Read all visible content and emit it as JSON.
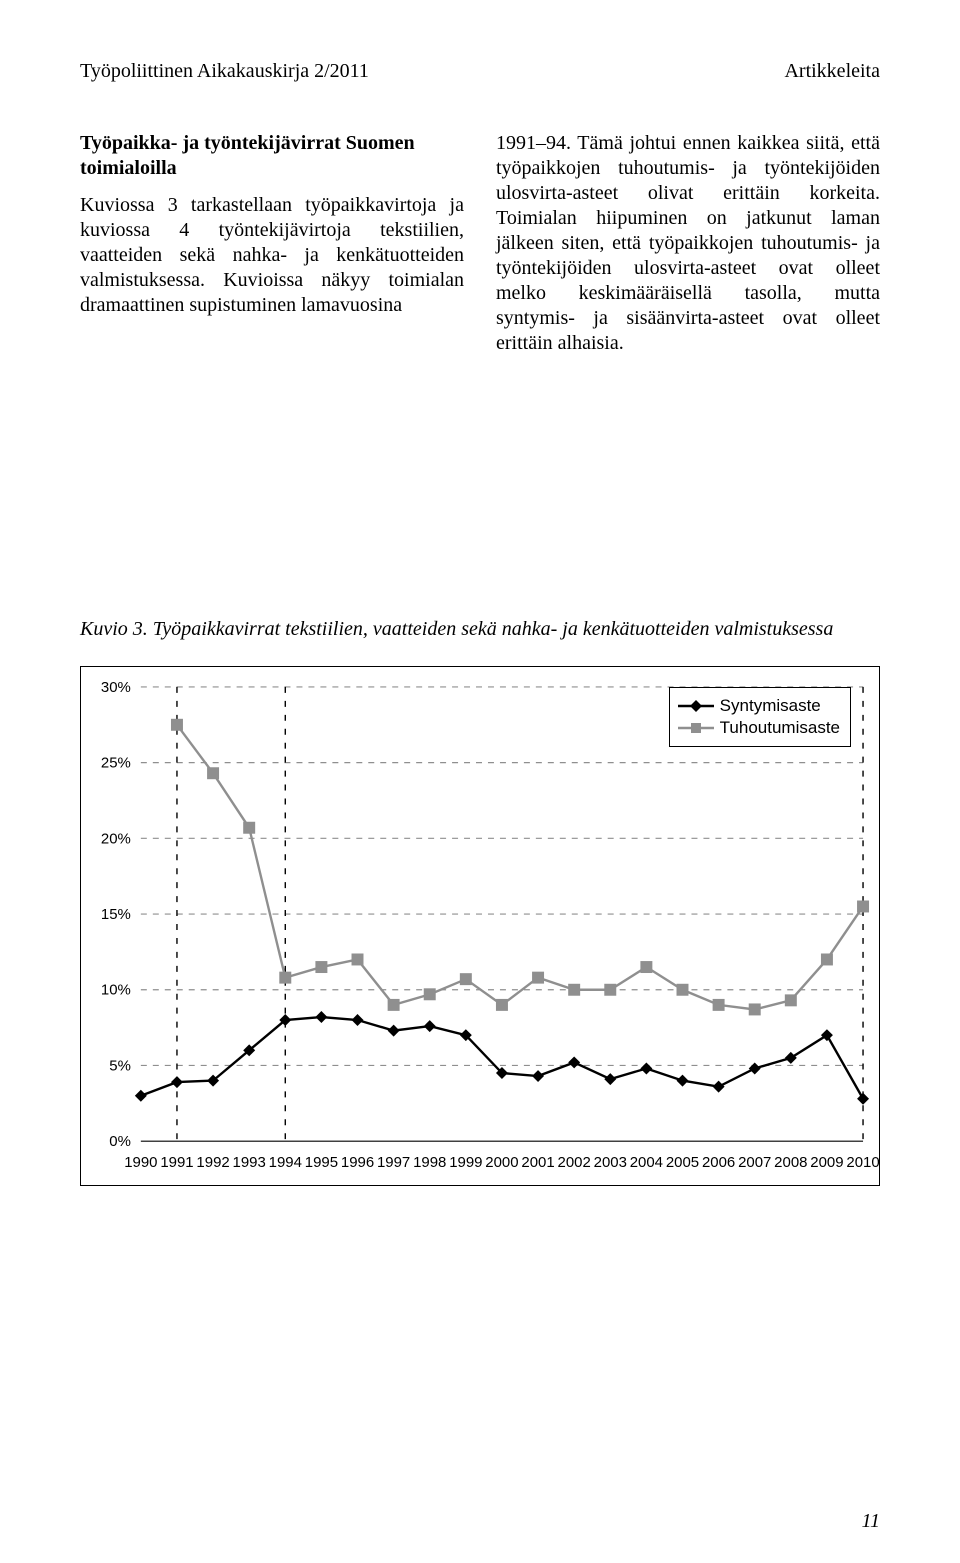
{
  "running_head": {
    "left": "Työpoliittinen Aikakauskirja 2/2011",
    "right": "Artikkeleita"
  },
  "left_col": {
    "heading": "Työpaikka- ja työntekijävirrat Suomen toimialoilla",
    "body": "Kuviossa 3 tarkastellaan työpaikkavirtoja ja kuviossa 4 työntekijävirtoja tekstiilien, vaatteiden sekä nahka- ja kenkätuotteiden valmistuksessa. Kuvioissa näkyy toimialan dramaattinen supistuminen lamavuosina"
  },
  "right_col": {
    "body": "1991–94. Tämä johtui ennen kaikkea siitä, että työpaikkojen tuhoutumis- ja työntekijöiden ulosvirta-asteet olivat erittäin korkeita. Toimialan hiipuminen on jatkunut laman jälkeen siten, että työpaikkojen tuhoutumis- ja työntekijöiden ulosvirta-asteet ovat olleet melko keskimääräisellä tasolla, mutta syntymis- ja sisäänvirta-asteet ovat olleet erittäin alhaisia."
  },
  "figure_caption": "Kuvio 3. Työpaikkavirrat tekstiilien, vaatteiden sekä nahka- ja kenkätuotteiden valmistuksessa",
  "chart": {
    "type": "line",
    "x_labels": [
      "1990",
      "1991",
      "1992",
      "1993",
      "1994",
      "1995",
      "1996",
      "1997",
      "1998",
      "1999",
      "2000",
      "2001",
      "2002",
      "2003",
      "2004",
      "2005",
      "2006",
      "2007",
      "2008",
      "2009",
      "2010"
    ],
    "y_ticks": [
      0,
      5,
      10,
      15,
      20,
      25,
      30
    ],
    "y_tick_labels": [
      "0%",
      "5%",
      "10%",
      "15%",
      "20%",
      "25%",
      "30%"
    ],
    "ylim": [
      0,
      30
    ],
    "series": [
      {
        "name": "Syntymisaste",
        "color": "#000000",
        "marker": "diamond",
        "line_width": 2.4,
        "marker_size": 6,
        "values": [
          3.0,
          3.9,
          4.0,
          6.0,
          8.0,
          8.2,
          8.0,
          7.3,
          7.6,
          7.0,
          4.5,
          4.3,
          5.2,
          4.1,
          4.8,
          4.0,
          3.6,
          4.8,
          5.5,
          7.0,
          2.8
        ]
      },
      {
        "name": "Tuhoutumisaste",
        "color": "#8f8f8f",
        "marker": "square",
        "line_width": 2.4,
        "marker_size": 6,
        "values": [
          null,
          27.5,
          24.3,
          20.7,
          10.8,
          11.5,
          12.0,
          9.0,
          9.7,
          10.7,
          9.0,
          10.8,
          10.0,
          10.0,
          11.5,
          10.0,
          9.0,
          8.7,
          9.3,
          12.0,
          15.5
        ]
      }
    ],
    "grid_color": "#8f8f8f",
    "grid_dash": "6,6",
    "vlines_x": [
      "1991",
      "1994",
      "2010"
    ],
    "vline_dash": "6,8",
    "background_color": "#ffffff",
    "label_font": "Arial",
    "label_fontsize": 15,
    "tick_fontsize": 15,
    "legend_fontsize": 17
  },
  "page_number": "11"
}
